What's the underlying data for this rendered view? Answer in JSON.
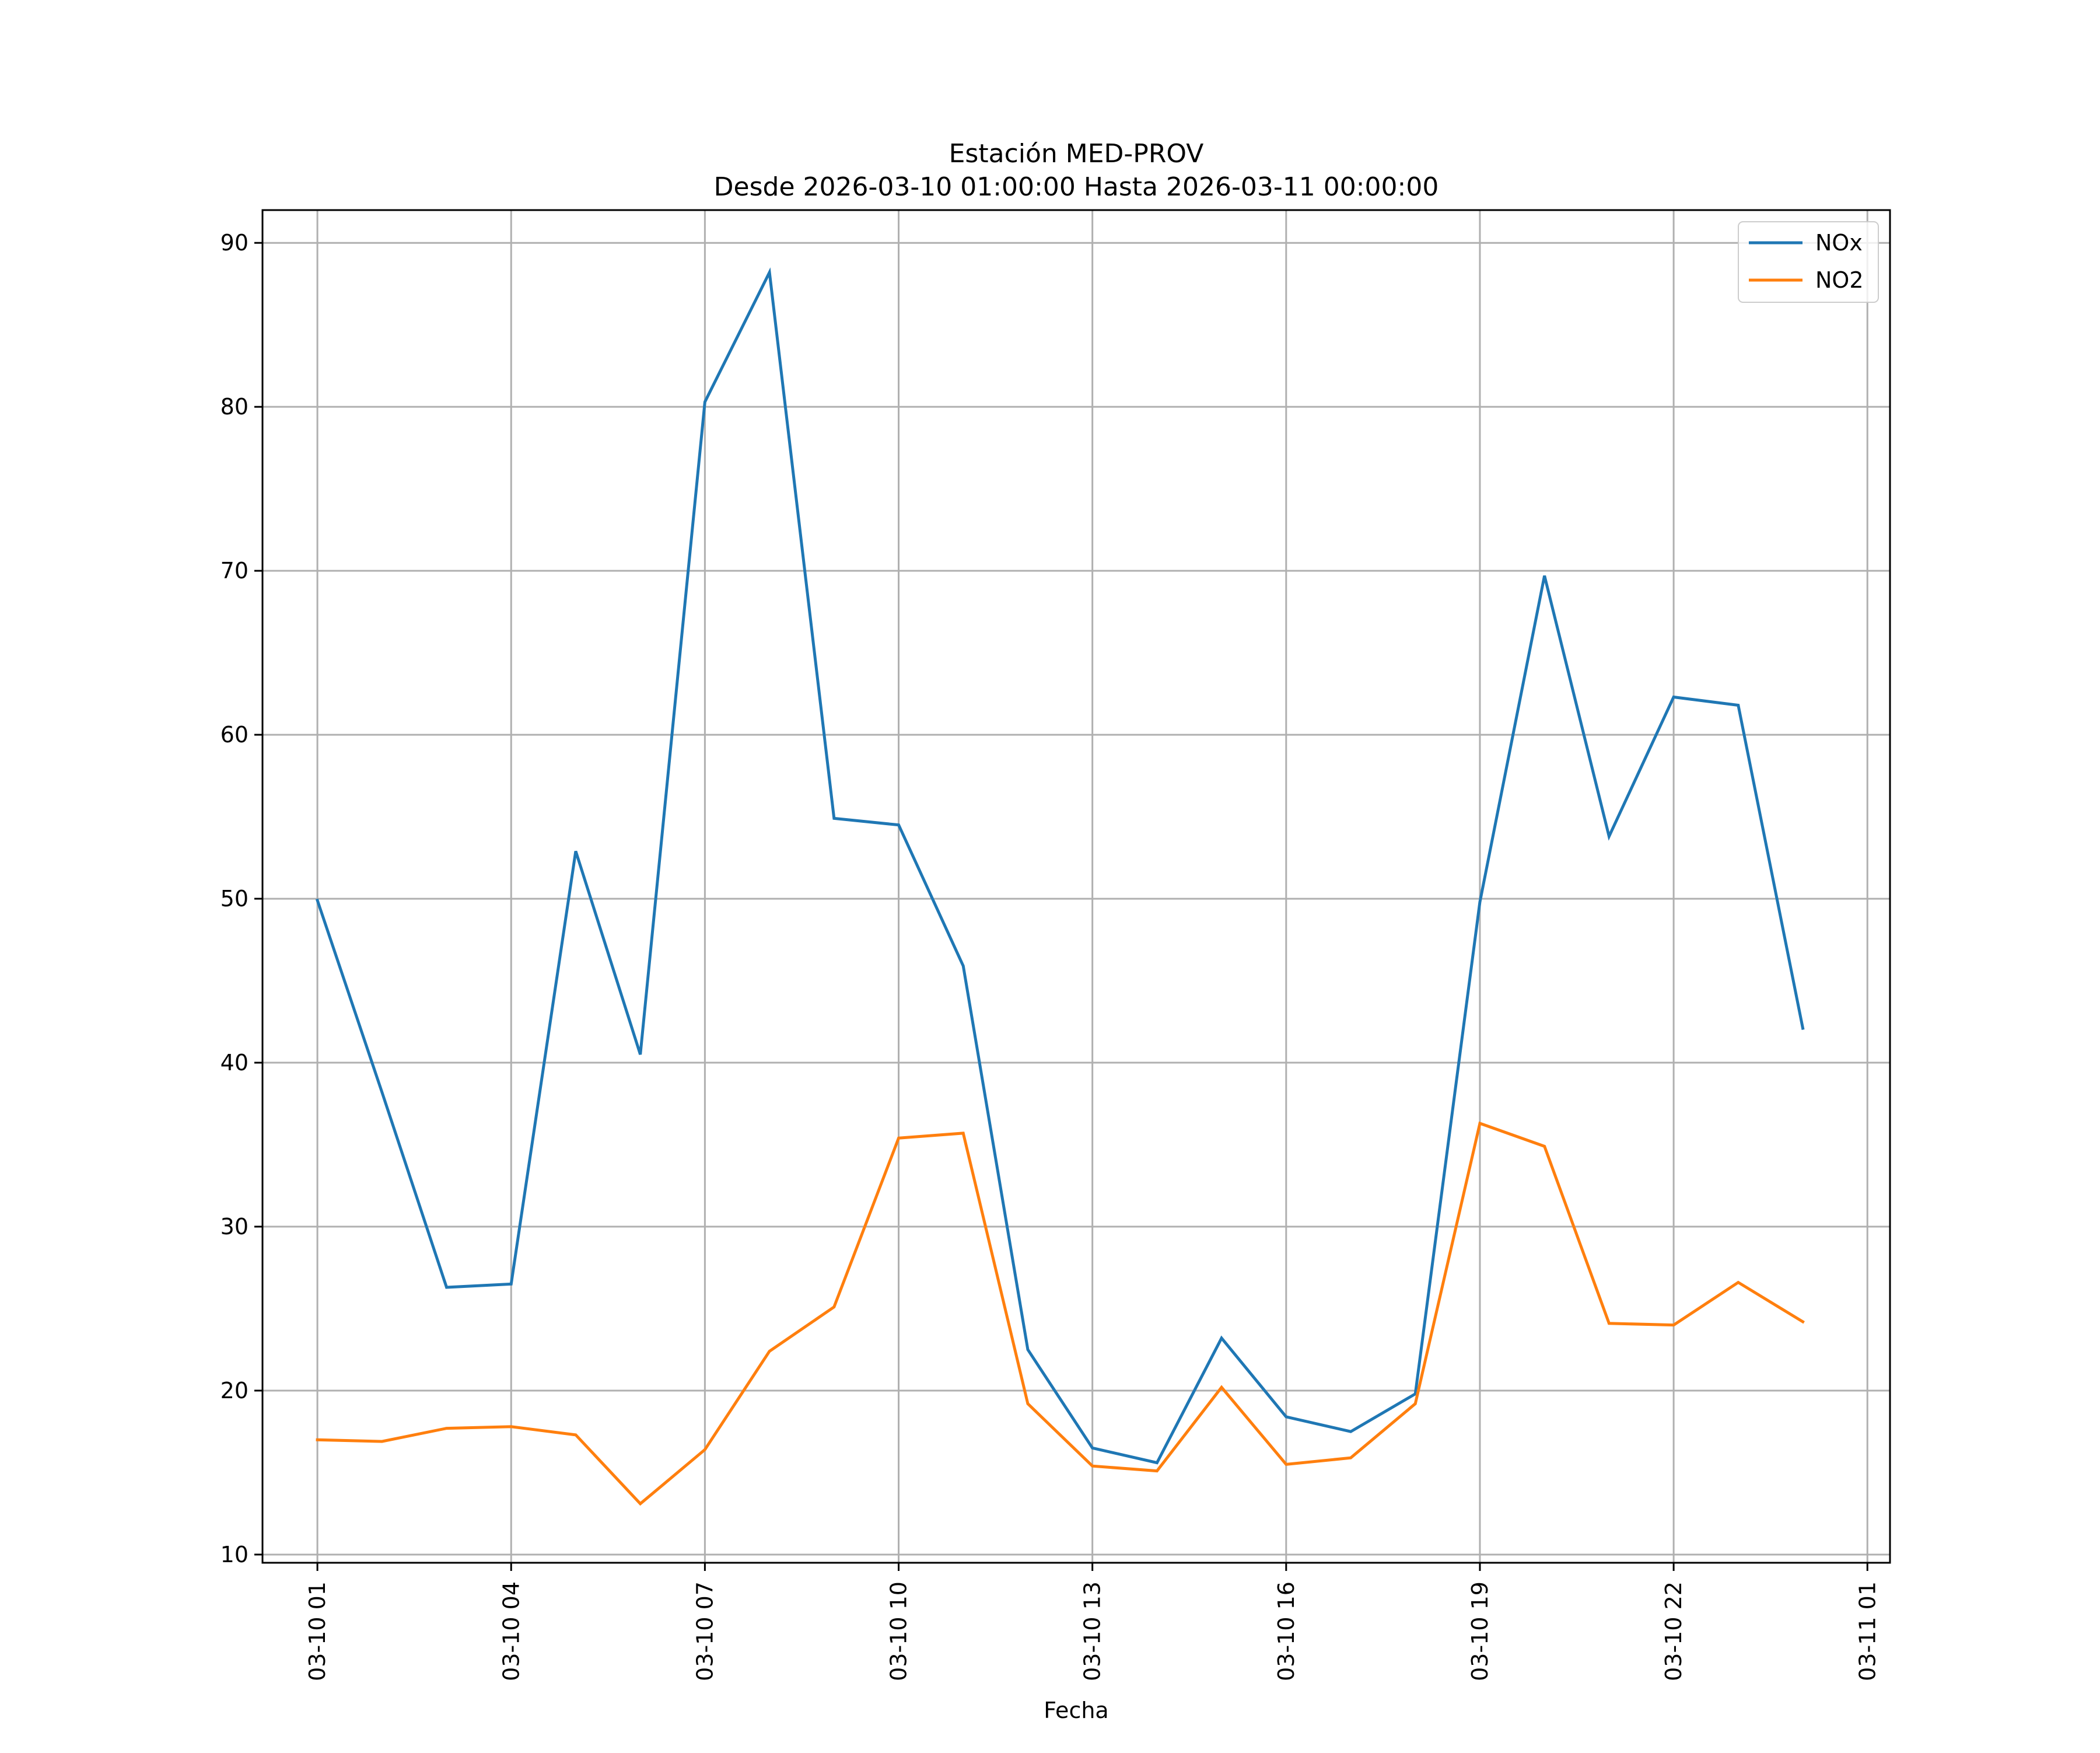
{
  "chart_data": {
    "type": "line",
    "title_line1": "Estación MED-PROV",
    "title_line2": "Desde 2026-03-10 01:00:00 Hasta 2026-03-11 00:00:00",
    "xlabel": "Fecha",
    "ylabel": "",
    "ylim": [
      9.5,
      92
    ],
    "xlim_hours": [
      -0.85,
      24.35
    ],
    "grid": true,
    "legend_position": "top-right",
    "yticks": [
      10,
      20,
      30,
      40,
      50,
      60,
      70,
      80,
      90
    ],
    "xticks": [
      {
        "hour": 0,
        "label": "03-10 01"
      },
      {
        "hour": 3,
        "label": "03-10 04"
      },
      {
        "hour": 6,
        "label": "03-10 07"
      },
      {
        "hour": 9,
        "label": "03-10 10"
      },
      {
        "hour": 12,
        "label": "03-10 13"
      },
      {
        "hour": 15,
        "label": "03-10 16"
      },
      {
        "hour": 18,
        "label": "03-10 19"
      },
      {
        "hour": 21,
        "label": "03-10 22"
      },
      {
        "hour": 24,
        "label": "03-11 01"
      }
    ],
    "x_hours": [
      0,
      1,
      2,
      3,
      4,
      5,
      6,
      7,
      8,
      9,
      10,
      11,
      12,
      13,
      14,
      15,
      16,
      17,
      18,
      19,
      20,
      21,
      22,
      23
    ],
    "series": [
      {
        "name": "NOx",
        "color": "#1f77b4",
        "values": [
          49.9,
          38.2,
          26.3,
          26.5,
          52.9,
          40.5,
          80.3,
          88.2,
          54.9,
          54.5,
          45.9,
          22.5,
          16.5,
          15.6,
          23.2,
          18.4,
          17.5,
          19.8,
          49.8,
          69.7,
          53.8,
          62.3,
          61.8,
          42.1
        ]
      },
      {
        "name": "NO2",
        "color": "#ff7f0e",
        "values": [
          17.0,
          16.9,
          17.7,
          17.8,
          17.3,
          13.1,
          16.4,
          22.4,
          25.1,
          35.4,
          35.7,
          19.2,
          15.4,
          15.1,
          20.2,
          15.5,
          15.9,
          19.2,
          36.3,
          34.9,
          24.1,
          24.0,
          26.6,
          24.2
        ]
      }
    ]
  }
}
